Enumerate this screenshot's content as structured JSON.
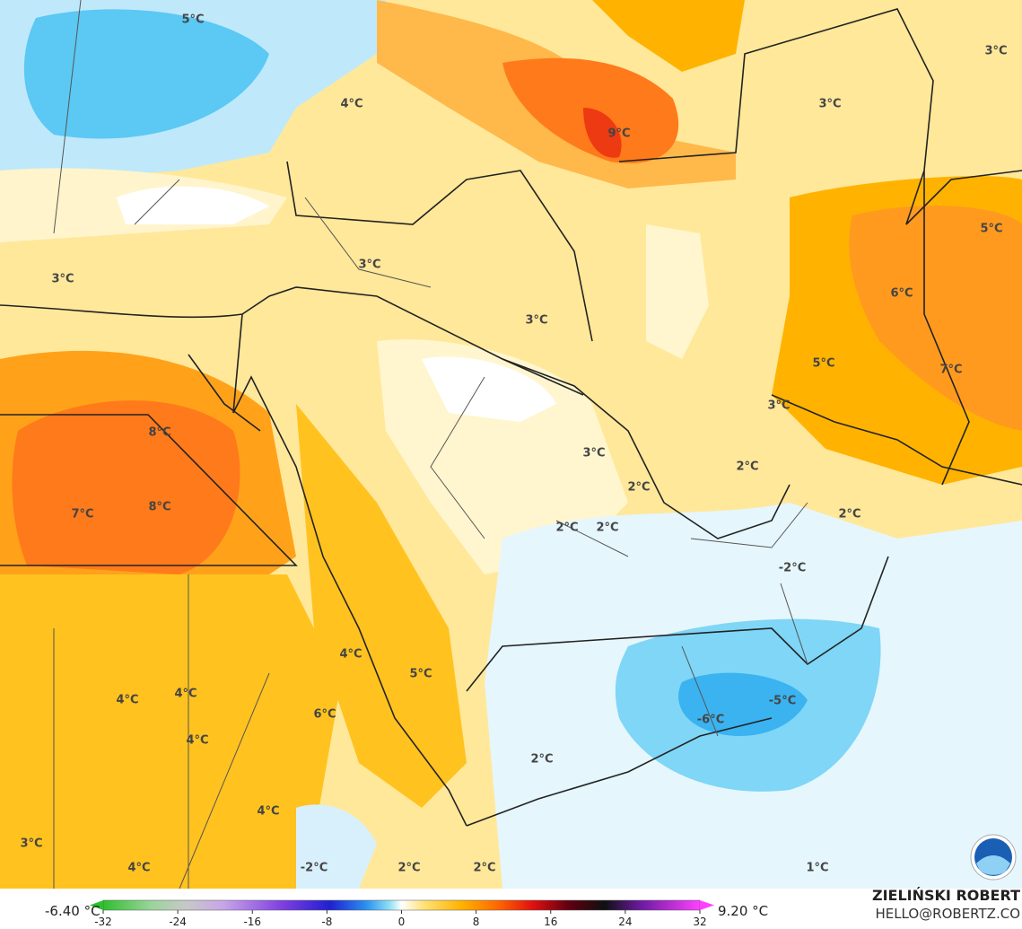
{
  "map_labels": [
    "5°C",
    "4°C",
    "3°C",
    "3°C",
    "9°C",
    "5°C",
    "6°C",
    "3°C",
    "3°C",
    "3°C",
    "5°C",
    "7°C",
    "3°C",
    "8°C",
    "8°C",
    "7°C",
    "3°C",
    "2°C",
    "2°C",
    "2°C",
    "2°C",
    "2°C",
    "-2°C",
    "4°C",
    "5°C",
    "6°C",
    "4°C",
    "4°C",
    "4°C",
    "-5°C",
    "-6°C",
    "2°C",
    "4°C",
    "3°C",
    "4°C",
    "-2°C",
    "2°C",
    "2°C",
    "1°C"
  ],
  "colorbar": {
    "min_label": "-6.40 °C",
    "max_label": "9.20 °C",
    "range": [
      -32,
      32
    ],
    "ticks": [
      -32,
      -24,
      -16,
      -8,
      0,
      8,
      16,
      24,
      32
    ]
  },
  "footer": {
    "author": "ZIELIŃSKI ROBERT",
    "email": "HELLO@ROBERTZ.CO"
  }
}
